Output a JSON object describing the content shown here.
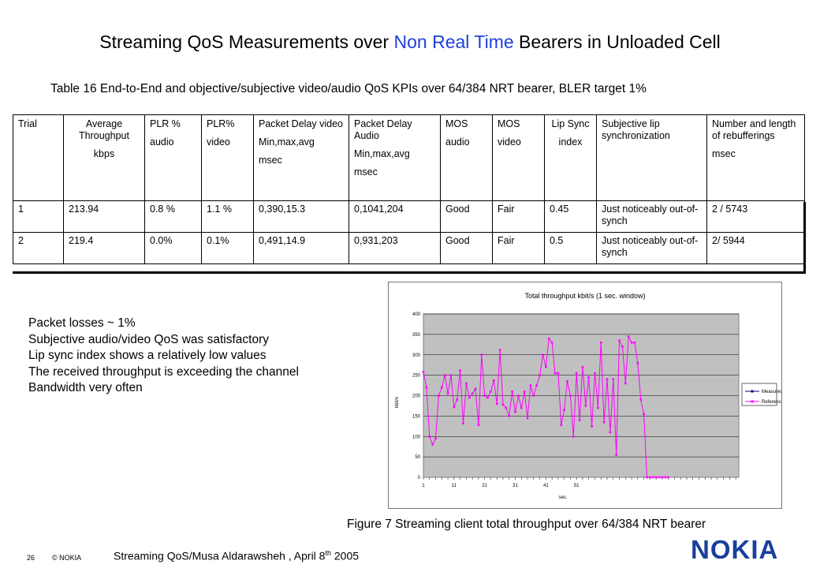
{
  "slide": {
    "title_pre": "Streaming QoS Measurements over ",
    "title_highlight": "Non Real Time",
    "title_post": " Bearers in Unloaded Cell",
    "title_highlight_color": "#1f3fd9",
    "table_caption": "Table 16 End-to-End and objective/subjective video/audio QoS KPIs over 64/384 NRT bearer, BLER target 1%"
  },
  "table": {
    "headers": [
      [
        "Trial"
      ],
      [
        "Average Throughput",
        "kbps"
      ],
      [
        "PLR %",
        "audio"
      ],
      [
        "PLR%",
        "video"
      ],
      [
        "Packet Delay video",
        "Min,max,avg",
        "msec"
      ],
      [
        "Packet Delay Audio",
        "Min,max,avg",
        "msec"
      ],
      [
        "MOS",
        "audio"
      ],
      [
        "MOS",
        "video"
      ],
      [
        "Lip Sync",
        "index"
      ],
      [
        "Subjective lip synchronization"
      ],
      [
        "Number and length of rebufferings",
        "msec"
      ]
    ],
    "rows": [
      [
        "1",
        "213.94",
        "0.8 %",
        "1.1 %",
        "0,390,15.3",
        "0,1041,204",
        "Good",
        "Fair",
        "0.45",
        "Just noticeably out-of-synch",
        "2 / 5743"
      ],
      [
        "2",
        "219.4",
        "0.0%",
        "0.1%",
        "0,491,14.9",
        "0,931,203",
        "Good",
        "Fair",
        "0.5",
        "Just noticeably out-of-synch",
        "2/ 5944"
      ]
    ]
  },
  "bullets": [
    "Packet losses ~ 1%",
    "Subjective audio/video QoS was satisfactory",
    "Lip sync index shows a relatively low values",
    "The received throughput is exceeding the channel",
    "Bandwidth very often"
  ],
  "chart_data": {
    "type": "line",
    "title": "Total throughput kbit/s (1 sec. window)",
    "xlabel": "sec.",
    "ylabel": "kbit/s",
    "ylim": [
      0,
      400
    ],
    "yticks": [
      0,
      50,
      100,
      150,
      200,
      250,
      300,
      350,
      400
    ],
    "xticks": [
      1,
      11,
      21,
      31,
      41,
      51
    ],
    "xlim": [
      1,
      104
    ],
    "grid": true,
    "plot_background": "#c0c0c0",
    "legend_position": "right",
    "series": [
      {
        "name": "Measured",
        "color": "#000080",
        "values": []
      },
      {
        "name": "Reference",
        "color": "#ff00ff",
        "values": [
          258,
          220,
          100,
          80,
          95,
          200,
          220,
          250,
          205,
          250,
          172,
          190,
          262,
          132,
          230,
          195,
          205,
          217,
          128,
          300,
          200,
          195,
          210,
          237,
          180,
          312,
          178,
          170,
          150,
          210,
          160,
          200,
          170,
          210,
          145,
          225,
          200,
          225,
          250,
          300,
          270,
          340,
          330,
          255,
          255,
          128,
          165,
          235,
          200,
          100,
          255,
          140,
          270,
          175,
          245,
          125,
          255,
          170,
          330,
          135,
          240,
          110,
          240,
          55,
          335,
          320,
          230,
          345,
          330,
          330,
          280,
          190,
          155,
          0,
          0,
          0,
          0,
          0,
          0,
          0,
          0
        ]
      }
    ]
  },
  "figure_caption": "Figure 7 Streaming client total throughput over 64/384 NRT bearer",
  "footer": {
    "page": "26",
    "copyright": "© NOKIA",
    "text": "Streaming QoS/Musa Aldarawsheh ,  April 8",
    "text_sup": "th",
    "year": " 2005",
    "logo": "NOKIA",
    "logo_color": "#1a3f9c"
  }
}
